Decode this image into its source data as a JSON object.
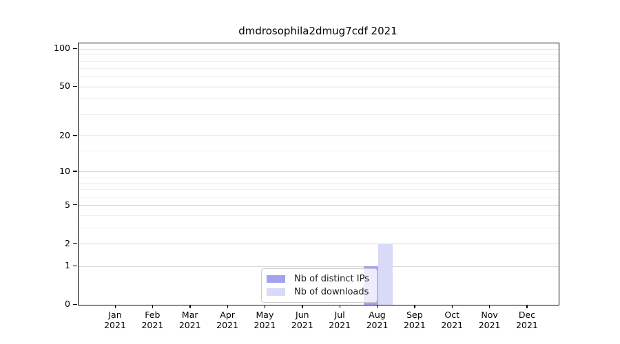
{
  "title": "dmdrosophila2dmug7cdf 2021",
  "chart_data": {
    "type": "bar",
    "title": "dmdrosophila2dmug7cdf 2021",
    "categories": [
      "Jan",
      "Feb",
      "Mar",
      "Apr",
      "May",
      "Jun",
      "Jul",
      "Aug",
      "Sep",
      "Oct",
      "Nov",
      "Dec"
    ],
    "year_label": "2021",
    "series": [
      {
        "name": "Nb of distinct IPs",
        "color": "#a2a2ef",
        "values": [
          0,
          0,
          0,
          0,
          0,
          0,
          0,
          1,
          0,
          0,
          0,
          0
        ]
      },
      {
        "name": "Nb of downloads",
        "color": "#d9d9f8",
        "values": [
          0,
          0,
          0,
          0,
          0,
          0,
          0,
          2,
          0,
          0,
          0,
          0
        ]
      }
    ],
    "xlabel": "",
    "ylabel": "",
    "y_scale": "log1p",
    "y_major_ticks": [
      0,
      1,
      2,
      5,
      10,
      20,
      50,
      100
    ],
    "y_minor_ticks": [
      3,
      4,
      6,
      7,
      8,
      9,
      15,
      30,
      40,
      60,
      70,
      80,
      90
    ],
    "ylim": [
      0,
      111
    ],
    "grid": "horizontal",
    "legend_position": "bottom-center",
    "legend_items": [
      "Nb of distinct IPs",
      "Nb of downloads"
    ]
  }
}
